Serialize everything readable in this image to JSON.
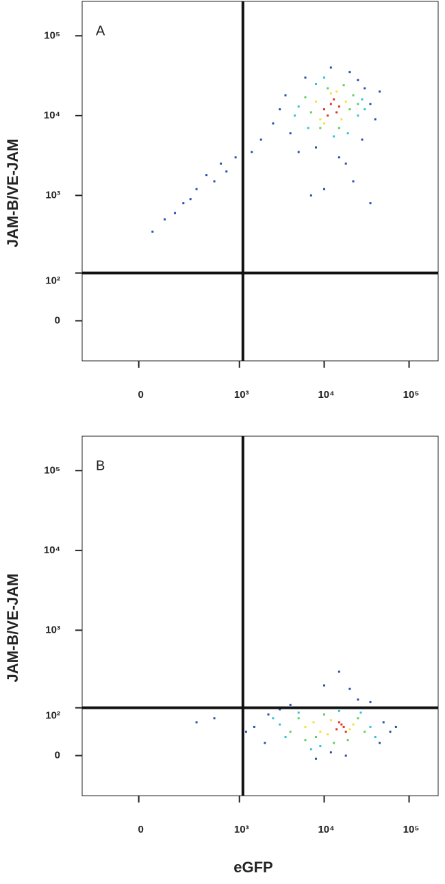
{
  "chart_data": [
    {
      "type": "scatter",
      "panel_label": "A",
      "ylabel": "JAM-B/VE-JAM",
      "xscale": "biexponential",
      "yscale": "biexponential",
      "xlim": [
        -290,
        220000
      ],
      "ylim": [
        -77,
        270000
      ],
      "xticks": [
        0,
        {
          "value": 1000,
          "label": "10³"
        },
        {
          "value": 10000,
          "label": "10⁴"
        },
        {
          "value": 100000,
          "label": "10⁵"
        }
      ],
      "yticks": [
        0,
        {
          "value": 100,
          "label": "10²"
        },
        {
          "value": 1000,
          "label": "10³"
        },
        {
          "value": 10000,
          "label": "10⁴"
        },
        {
          "value": 100000,
          "label": "10⁵"
        }
      ],
      "gates": {
        "x": 1100,
        "y": 100
      },
      "series": [
        {
          "color": "#2b4fae",
          "x": [
            3000,
            4000,
            35000,
            40000,
            5000,
            28000,
            6000,
            20000,
            3500,
            45000,
            8000,
            15000,
            2500,
            12000,
            18000,
            25000,
            30000,
            1800,
            1400,
            900,
            600,
            400,
            300,
            200,
            150,
            250,
            500,
            700,
            100,
            50,
            22000,
            10000,
            7000,
            35000
          ],
          "values": [
            12000,
            6000,
            14000,
            9000,
            3500,
            5000,
            30000,
            35000,
            18000,
            20000,
            4000,
            3000,
            8000,
            40000,
            2500,
            28000,
            22000,
            5000,
            3500,
            3000,
            2500,
            1800,
            1200,
            800,
            600,
            900,
            1500,
            2000,
            500,
            350,
            1500,
            1200,
            1000,
            800
          ]
        },
        {
          "color": "#2ec4d6",
          "x": [
            5000,
            25000,
            6500,
            28000,
            8000,
            19000,
            4500,
            30000,
            13000,
            10000
          ],
          "values": [
            13000,
            10000,
            7000,
            16000,
            25000,
            6000,
            10000,
            12000,
            5500,
            30000
          ]
        },
        {
          "color": "#5fd05a",
          "x": [
            7000,
            20000,
            6000,
            22000,
            9000,
            15000,
            11000,
            17000,
            25000
          ],
          "values": [
            11000,
            12000,
            17000,
            18000,
            7000,
            7000,
            22000,
            24000,
            14000
          ]
        },
        {
          "color": "#f2e13a",
          "x": [
            8000,
            16000,
            9000,
            18000,
            12000,
            10000,
            14000
          ],
          "values": [
            15000,
            9000,
            9000,
            15000,
            19000,
            8000,
            20000
          ]
        },
        {
          "color": "#e3341f",
          "x": [
            10000,
            12000,
            14000,
            11000,
            13000,
            15000
          ],
          "values": [
            12000,
            14000,
            11000,
            10000,
            16000,
            13000
          ]
        }
      ]
    },
    {
      "type": "scatter",
      "panel_label": "B",
      "ylabel": "JAM-B/VE-JAM",
      "xlabel": "eGFP",
      "xscale": "biexponential",
      "yscale": "biexponential",
      "xlim": [
        -290,
        220000
      ],
      "ylim": [
        -77,
        270000
      ],
      "xticks": [
        0,
        {
          "value": 1000,
          "label": "10³"
        },
        {
          "value": 10000,
          "label": "10⁴"
        },
        {
          "value": 100000,
          "label": "10⁵"
        }
      ],
      "yticks": [
        0,
        {
          "value": 100,
          "label": "10²"
        },
        {
          "value": 1000,
          "label": "10³"
        },
        {
          "value": 10000,
          "label": "10⁴"
        },
        {
          "value": 100000,
          "label": "10⁵"
        }
      ],
      "gates": {
        "x": 1100,
        "y": 100
      },
      "series": [
        {
          "color": "#2b4fae",
          "x": [
            1500,
            2000,
            2200,
            50000,
            60000,
            45000,
            3000,
            70000,
            12000,
            18000,
            8000,
            25000,
            1200,
            300,
            500,
            10000,
            20000,
            15000,
            35000,
            4000
          ],
          "values": [
            50,
            20,
            80,
            60,
            40,
            20,
            95,
            50,
            5,
            0,
            -5,
            130,
            40,
            60,
            70,
            200,
            180,
            300,
            120,
            110
          ]
        },
        {
          "color": "#2ec4d6",
          "x": [
            3000,
            3500,
            35000,
            40000,
            5000,
            27000,
            9000,
            15000,
            2500,
            7000
          ],
          "values": [
            55,
            30,
            50,
            30,
            85,
            85,
            15,
            90,
            70,
            10
          ]
        },
        {
          "color": "#5fd05a",
          "x": [
            4000,
            5000,
            8000,
            25000,
            30000,
            10000,
            13000,
            19000,
            6000
          ],
          "values": [
            40,
            70,
            30,
            70,
            40,
            80,
            20,
            25,
            25
          ]
        },
        {
          "color": "#f2e13a",
          "x": [
            6000,
            9000,
            12000,
            20000,
            7500,
            11000,
            22000
          ],
          "values": [
            50,
            40,
            65,
            45,
            60,
            35,
            55
          ]
        },
        {
          "color": "#e3341f",
          "x": [
            14000,
            16000,
            18000,
            15000,
            17000
          ],
          "values": [
            45,
            55,
            40,
            60,
            50
          ]
        }
      ]
    }
  ]
}
